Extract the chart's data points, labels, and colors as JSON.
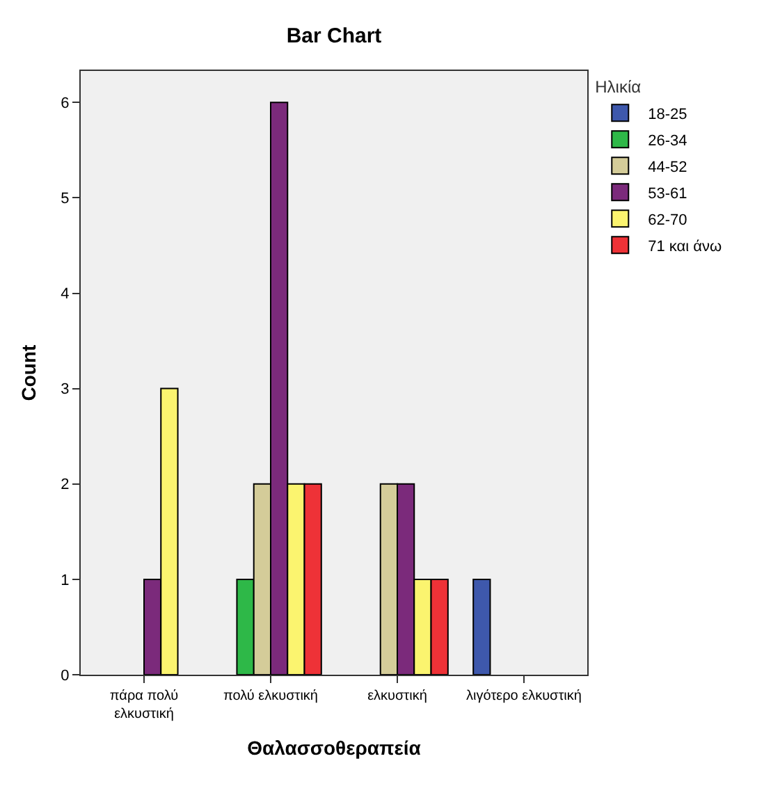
{
  "chart_data": {
    "type": "bar",
    "title": "Bar Chart",
    "xlabel": "Θαλασσοθεραπεία",
    "ylabel": "Count",
    "legend_title": "Ηλικία",
    "categories": [
      "πάρα πολύ ελκυστική",
      "πολύ ελκυστική",
      "ελκυστική",
      "λιγότερο ελκυστική"
    ],
    "series": [
      {
        "name": "18-25",
        "color": "#3e58ac",
        "values": [
          null,
          null,
          null,
          1
        ]
      },
      {
        "name": "26-34",
        "color": "#2eb848",
        "values": [
          null,
          1,
          null,
          null
        ]
      },
      {
        "name": "44-52",
        "color": "#d4cc99",
        "values": [
          null,
          2,
          2,
          null
        ]
      },
      {
        "name": "53-61",
        "color": "#7b2a7b",
        "values": [
          1,
          6,
          2,
          null
        ]
      },
      {
        "name": "62-70",
        "color": "#fbf46f",
        "values": [
          3,
          2,
          1,
          null
        ]
      },
      {
        "name": "71 και άνω",
        "color": "#ee3237",
        "values": [
          null,
          2,
          1,
          null
        ]
      }
    ],
    "ylim": [
      0,
      6.33
    ],
    "yticks": [
      0,
      1,
      2,
      3,
      4,
      5,
      6
    ],
    "grid": false,
    "legend": "top right"
  }
}
